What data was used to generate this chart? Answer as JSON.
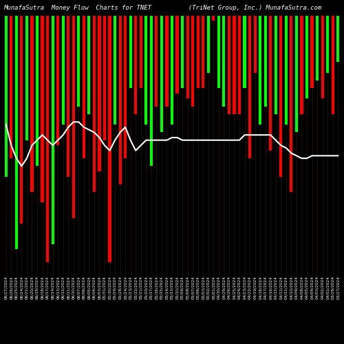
{
  "title": "MunafaSutra  Money Flow  Charts for TNET          (TriNet Group, Inc.) MunafaSutra.com",
  "background_color": "#000000",
  "bar_colors": [
    "green",
    "red",
    "green",
    "red",
    "green",
    "red",
    "green",
    "red",
    "red",
    "green",
    "red",
    "green",
    "red",
    "red",
    "green",
    "red",
    "green",
    "red",
    "red",
    "red",
    "red",
    "green",
    "red",
    "red",
    "green",
    "red",
    "red",
    "green",
    "green",
    "red",
    "green",
    "red",
    "green",
    "red",
    "green",
    "red",
    "red",
    "red",
    "red",
    "green",
    "red",
    "green",
    "green",
    "red",
    "red",
    "red",
    "green",
    "red",
    "red",
    "green",
    "green",
    "red",
    "green",
    "red",
    "green",
    "red",
    "green",
    "red",
    "green",
    "red",
    "green",
    "red",
    "green",
    "red",
    "green"
  ],
  "bar_heights": [
    62,
    55,
    90,
    80,
    48,
    68,
    58,
    72,
    95,
    88,
    50,
    42,
    62,
    78,
    35,
    55,
    38,
    68,
    60,
    48,
    95,
    42,
    65,
    55,
    28,
    38,
    28,
    42,
    58,
    35,
    45,
    35,
    42,
    30,
    28,
    32,
    35,
    28,
    28,
    22,
    2,
    28,
    35,
    38,
    38,
    38,
    28,
    55,
    22,
    42,
    35,
    52,
    38,
    62,
    42,
    68,
    45,
    38,
    32,
    28,
    25,
    32,
    22,
    38,
    18
  ],
  "line_values": [
    42,
    50,
    55,
    58,
    55,
    50,
    48,
    46,
    48,
    50,
    48,
    46,
    43,
    41,
    41,
    43,
    44,
    45,
    47,
    50,
    52,
    48,
    45,
    43,
    48,
    52,
    50,
    48,
    48,
    48,
    48,
    48,
    47,
    47,
    48,
    48,
    48,
    48,
    48,
    48,
    48,
    48,
    48,
    48,
    48,
    48,
    46,
    46,
    46,
    46,
    46,
    46,
    48,
    50,
    51,
    53,
    54,
    55,
    55,
    54,
    54,
    54,
    54,
    54,
    54
  ],
  "x_labels": [
    "06/27/2024",
    "06/26/2024",
    "06/25/2024",
    "06/24/2024",
    "06/21/2024",
    "06/20/2024",
    "06/19/2024",
    "06/18/2024",
    "06/17/2024",
    "06/14/2024",
    "06/13/2024",
    "06/12/2024",
    "06/11/2024",
    "06/10/2024",
    "06/07/2024",
    "06/06/2024",
    "06/05/2024",
    "06/04/2024",
    "06/03/2024",
    "05/31/2024",
    "05/30/2024",
    "05/29/2024",
    "05/28/2024",
    "05/24/2024",
    "05/23/2024",
    "05/22/2024",
    "05/21/2024",
    "05/20/2024",
    "05/17/2024",
    "05/16/2024",
    "05/15/2024",
    "05/14/2024",
    "05/13/2024",
    "05/10/2024",
    "05/09/2024",
    "05/08/2024",
    "05/07/2024",
    "05/06/2024",
    "05/03/2024",
    "05/02/2024",
    "05/01/2024",
    "04/30/2024",
    "04/29/2024",
    "04/26/2024",
    "04/25/2024",
    "04/24/2024",
    "04/23/2024",
    "04/22/2024",
    "04/19/2024",
    "04/18/2024",
    "04/17/2024",
    "04/16/2024",
    "04/15/2024",
    "04/12/2024",
    "04/11/2024",
    "04/10/2024",
    "04/09/2024",
    "04/08/2024",
    "04/05/2024",
    "04/04/2024",
    "04/03/2024",
    "04/02/2024",
    "04/01/2024",
    "03/28/2024",
    "03/27/2024"
  ],
  "title_fontsize": 6.5,
  "label_fontsize": 4.2,
  "line_color": "#ffffff",
  "line_width": 1.5,
  "green_color": "#00ff00",
  "red_color": "#ff0000",
  "grid_color": "#3a1a00",
  "ylim_max": 100
}
